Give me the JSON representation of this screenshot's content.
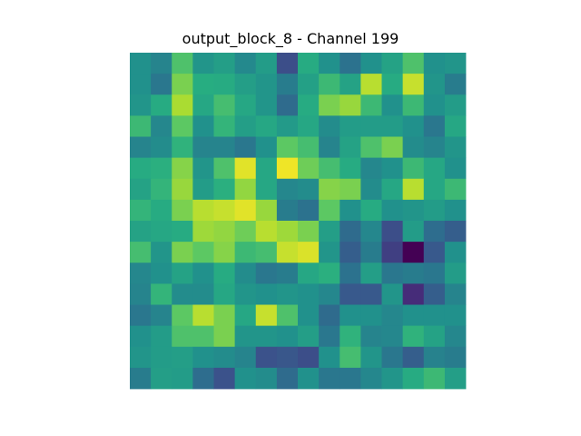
{
  "chart_data": {
    "type": "heatmap",
    "title": "output_block_8 - Channel 199",
    "xlabel": "",
    "ylabel": "",
    "axes_visible": false,
    "grid": false,
    "colormap": "viridis",
    "value_range": [
      0,
      1
    ],
    "rows": 16,
    "cols": 16,
    "values": [
      [
        0.5,
        0.45,
        0.72,
        0.52,
        0.56,
        0.47,
        0.55,
        0.24,
        0.62,
        0.5,
        0.38,
        0.5,
        0.58,
        0.72,
        0.5,
        0.52
      ],
      [
        0.5,
        0.4,
        0.8,
        0.63,
        0.62,
        0.56,
        0.52,
        0.42,
        0.57,
        0.68,
        0.58,
        0.9,
        0.62,
        0.92,
        0.52,
        0.42
      ],
      [
        0.52,
        0.62,
        0.88,
        0.6,
        0.7,
        0.6,
        0.52,
        0.35,
        0.62,
        0.8,
        0.85,
        0.68,
        0.5,
        0.68,
        0.5,
        0.55
      ],
      [
        0.68,
        0.46,
        0.75,
        0.5,
        0.66,
        0.56,
        0.6,
        0.54,
        0.6,
        0.48,
        0.55,
        0.55,
        0.55,
        0.5,
        0.4,
        0.6
      ],
      [
        0.45,
        0.48,
        0.65,
        0.45,
        0.45,
        0.4,
        0.5,
        0.75,
        0.7,
        0.45,
        0.58,
        0.72,
        0.8,
        0.48,
        0.45,
        0.52
      ],
      [
        0.62,
        0.64,
        0.82,
        0.52,
        0.72,
        0.96,
        0.6,
        0.98,
        0.78,
        0.7,
        0.62,
        0.46,
        0.5,
        0.68,
        0.6,
        0.5
      ],
      [
        0.58,
        0.66,
        0.85,
        0.55,
        0.64,
        0.84,
        0.6,
        0.46,
        0.48,
        0.82,
        0.8,
        0.48,
        0.6,
        0.9,
        0.6,
        0.68
      ],
      [
        0.66,
        0.62,
        0.8,
        0.9,
        0.92,
        0.96,
        0.85,
        0.42,
        0.38,
        0.75,
        0.5,
        0.62,
        0.5,
        0.52,
        0.55,
        0.5
      ],
      [
        0.58,
        0.6,
        0.62,
        0.86,
        0.84,
        0.78,
        0.9,
        0.86,
        0.8,
        0.56,
        0.35,
        0.46,
        0.24,
        0.55,
        0.36,
        0.3
      ],
      [
        0.7,
        0.52,
        0.8,
        0.75,
        0.82,
        0.68,
        0.7,
        0.92,
        0.95,
        0.52,
        0.3,
        0.42,
        0.2,
        0.0,
        0.28,
        0.5
      ],
      [
        0.46,
        0.5,
        0.58,
        0.5,
        0.62,
        0.48,
        0.4,
        0.42,
        0.6,
        0.64,
        0.38,
        0.56,
        0.4,
        0.42,
        0.4,
        0.55
      ],
      [
        0.45,
        0.66,
        0.48,
        0.48,
        0.6,
        0.52,
        0.5,
        0.52,
        0.5,
        0.46,
        0.28,
        0.28,
        0.52,
        0.15,
        0.3,
        0.45
      ],
      [
        0.4,
        0.45,
        0.75,
        0.9,
        0.8,
        0.6,
        0.92,
        0.72,
        0.5,
        0.35,
        0.5,
        0.5,
        0.46,
        0.5,
        0.5,
        0.5
      ],
      [
        0.5,
        0.55,
        0.72,
        0.72,
        0.8,
        0.52,
        0.52,
        0.5,
        0.56,
        0.4,
        0.65,
        0.45,
        0.46,
        0.65,
        0.58,
        0.46
      ],
      [
        0.52,
        0.55,
        0.56,
        0.5,
        0.48,
        0.45,
        0.25,
        0.27,
        0.24,
        0.5,
        0.7,
        0.52,
        0.4,
        0.3,
        0.44,
        0.42
      ],
      [
        0.42,
        0.56,
        0.55,
        0.36,
        0.25,
        0.5,
        0.48,
        0.35,
        0.5,
        0.4,
        0.4,
        0.46,
        0.52,
        0.62,
        0.68,
        0.56
      ]
    ]
  }
}
